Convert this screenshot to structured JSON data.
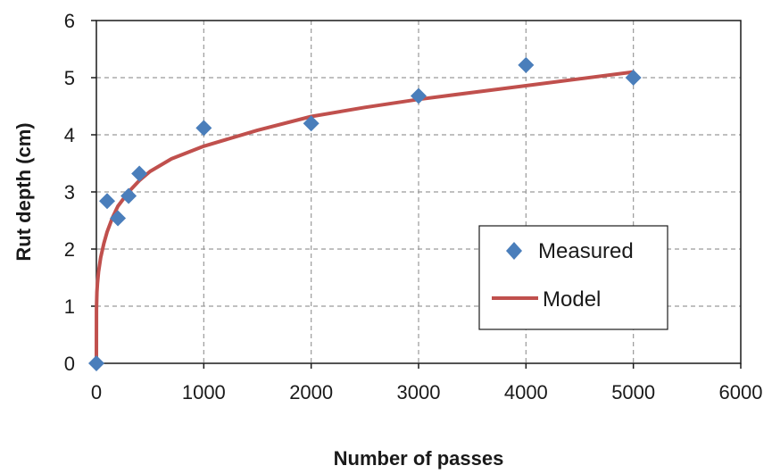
{
  "chart_data": {
    "type": "scatter",
    "title": "",
    "xlabel": "Number of passes",
    "ylabel": "Rut depth (cm)",
    "xlim": [
      0,
      6000
    ],
    "ylim": [
      0,
      6
    ],
    "xticks": [
      0,
      1000,
      2000,
      3000,
      4000,
      5000,
      6000
    ],
    "yticks": [
      0,
      1,
      2,
      3,
      4,
      5,
      6
    ],
    "grid": true,
    "legend_position": "lower-right",
    "series": [
      {
        "name": "Measured",
        "kind": "scatter",
        "marker": "diamond",
        "color": "#4a7ebb",
        "x": [
          0,
          100,
          200,
          300,
          400,
          1000,
          2000,
          3000,
          4000,
          5000
        ],
        "y": [
          0,
          2.84,
          2.54,
          2.93,
          3.32,
          4.12,
          4.2,
          4.68,
          5.22,
          5.0
        ]
      },
      {
        "name": "Model",
        "kind": "line",
        "color": "#c0504d",
        "x": [
          0,
          1,
          5,
          10,
          20,
          40,
          70,
          100,
          150,
          200,
          300,
          400,
          500,
          700,
          1000,
          1500,
          2000,
          2500,
          3000,
          3500,
          4000,
          4500,
          5000
        ],
        "y": [
          0,
          0.95,
          1.25,
          1.4,
          1.6,
          1.85,
          2.1,
          2.3,
          2.55,
          2.75,
          3.0,
          3.2,
          3.36,
          3.58,
          3.8,
          4.08,
          4.32,
          4.48,
          4.62,
          4.74,
          4.86,
          4.98,
          5.1
        ]
      }
    ]
  }
}
